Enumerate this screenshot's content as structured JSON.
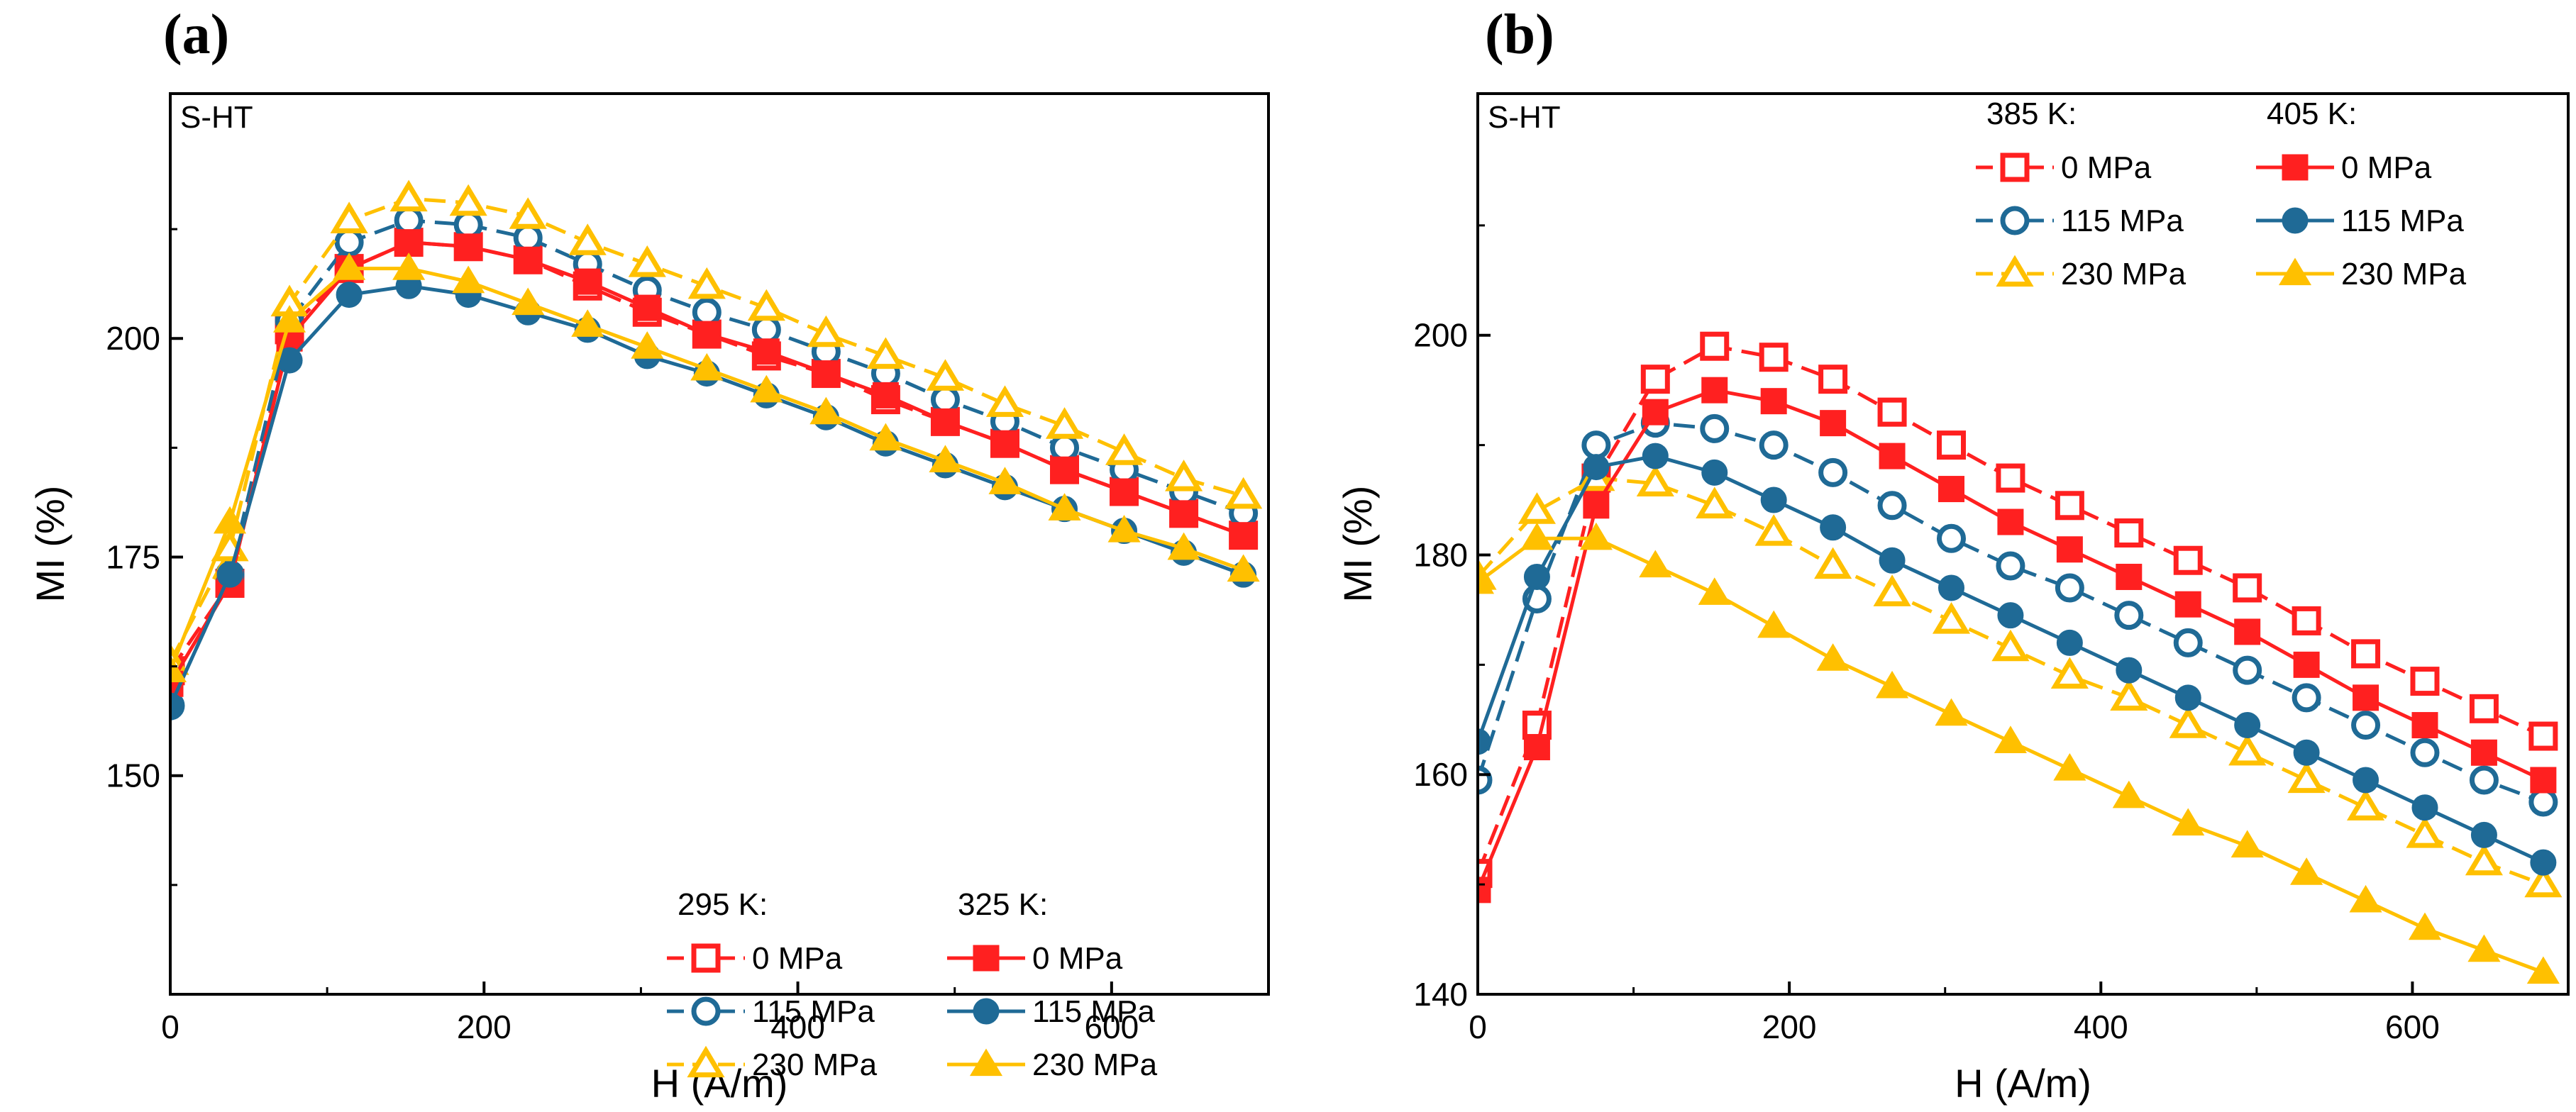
{
  "chart_data": [
    {
      "type": "line",
      "panel_label": "(a)",
      "annotation": "S-HT",
      "xlabel": "H (A/m)",
      "ylabel": "MI (%)",
      "xlim": [
        0,
        700
      ],
      "ylim": [
        125,
        228
      ],
      "xticks": [
        0,
        200,
        400,
        600
      ],
      "yticks": [
        150,
        175,
        200
      ],
      "legend": {
        "position": "bottom-right",
        "group_titles": [
          "295 K:",
          "325 K:"
        ],
        "rows": [
          "0 MPa",
          "115 MPa",
          "230 MPa"
        ]
      },
      "x": [
        0,
        38,
        76,
        114,
        152,
        190,
        228,
        266,
        304,
        342,
        380,
        418,
        456,
        494,
        532,
        570,
        608,
        646,
        684
      ],
      "series": [
        {
          "name": "295 K, 0 MPa",
          "color": "#ff2020",
          "marker": "square",
          "filled": false,
          "values": [
            162,
            172,
            201,
            208,
            211,
            210.5,
            209,
            206,
            203,
            200.5,
            198,
            196,
            193,
            190.5,
            188,
            185,
            182.5,
            180,
            177.5
          ]
        },
        {
          "name": "295 K, 115 MPa",
          "color": "#1f6a96",
          "marker": "circle",
          "filled": false,
          "values": [
            158,
            173,
            202,
            211,
            213.5,
            213,
            211.5,
            208.5,
            205.5,
            203,
            201,
            198.5,
            196,
            193,
            190.5,
            187.5,
            185,
            182.5,
            180
          ]
        },
        {
          "name": "295 K, 230 MPa",
          "color": "#ffc000",
          "marker": "triangle",
          "filled": false,
          "values": [
            163,
            176,
            204,
            213.5,
            216,
            215.5,
            214,
            211,
            208.5,
            206,
            203.5,
            200.5,
            198,
            195.5,
            192.5,
            190,
            187,
            184,
            182
          ]
        },
        {
          "name": "325 K, 0 MPa",
          "color": "#ff2020",
          "marker": "square",
          "filled": true,
          "values": [
            160.5,
            172,
            200,
            208,
            211,
            210.5,
            209,
            206.5,
            203.5,
            200.5,
            198.5,
            196,
            193.5,
            190.5,
            188,
            185,
            182.5,
            180,
            177.5
          ]
        },
        {
          "name": "325 K, 115 MPa",
          "color": "#1f6a96",
          "marker": "circle",
          "filled": true,
          "values": [
            158,
            173,
            197.5,
            205,
            206,
            205,
            203,
            201,
            198,
            196,
            193.5,
            191,
            188,
            185.5,
            183,
            180.5,
            178,
            175.5,
            173
          ]
        },
        {
          "name": "325 K, 230 MPa",
          "color": "#ffc000",
          "marker": "triangle",
          "filled": true,
          "values": [
            162,
            179,
            202,
            208,
            208,
            206.5,
            204,
            201.5,
            199,
            196.5,
            194,
            191.5,
            188.5,
            186,
            183.5,
            180.5,
            178,
            176,
            173.5
          ]
        }
      ]
    },
    {
      "type": "line",
      "panel_label": "(b)",
      "annotation": "S-HT",
      "xlabel": "H (A/m)",
      "ylabel": "MI (%)",
      "xlim": [
        0,
        700
      ],
      "ylim": [
        140,
        222
      ],
      "xticks": [
        0,
        200,
        400,
        600
      ],
      "yticks": [
        140,
        160,
        180,
        200
      ],
      "legend": {
        "position": "top-right",
        "group_titles": [
          "385 K:",
          "405 K:"
        ],
        "rows": [
          "0 MPa",
          "115 MPa",
          "230 MPa"
        ]
      },
      "x": [
        0,
        38,
        76,
        114,
        152,
        190,
        228,
        266,
        304,
        342,
        380,
        418,
        456,
        494,
        532,
        570,
        608,
        646,
        684
      ],
      "series": [
        {
          "name": "385 K, 0 MPa",
          "color": "#ff2020",
          "marker": "square",
          "filled": false,
          "values": [
            151,
            164.5,
            187,
            196,
            199,
            198,
            196,
            193,
            190,
            187,
            184.5,
            182,
            179.5,
            177,
            174,
            171,
            168.5,
            166,
            163.5
          ]
        },
        {
          "name": "385 K, 115 MPa",
          "color": "#1f6a96",
          "marker": "circle",
          "filled": false,
          "values": [
            159.5,
            176,
            190,
            192,
            191.5,
            190,
            187.5,
            184.5,
            181.5,
            179,
            177,
            174.5,
            172,
            169.5,
            167,
            164.5,
            162,
            159.5,
            157.5
          ]
        },
        {
          "name": "385 K, 230 MPa",
          "color": "#ffc000",
          "marker": "triangle",
          "filled": false,
          "values": [
            178,
            184,
            187,
            186.5,
            184.5,
            182,
            179,
            176.5,
            174,
            171.5,
            169,
            167,
            164.5,
            162,
            159.5,
            157,
            154.5,
            152,
            150
          ]
        },
        {
          "name": "405 K, 0 MPa",
          "color": "#ff2020",
          "marker": "square",
          "filled": true,
          "values": [
            149.5,
            162.5,
            184.5,
            193,
            195,
            194,
            192,
            189,
            186,
            183,
            180.5,
            178,
            175.5,
            173,
            170,
            167,
            164.5,
            162,
            159.5
          ]
        },
        {
          "name": "405 K, 115 MPa",
          "color": "#1f6a96",
          "marker": "circle",
          "filled": true,
          "values": [
            163,
            178,
            188,
            189,
            187.5,
            185,
            182.5,
            179.5,
            177,
            174.5,
            172,
            169.5,
            167,
            164.5,
            162,
            159.5,
            157,
            154.5,
            152
          ]
        },
        {
          "name": "405 K, 230 MPa",
          "color": "#ffc000",
          "marker": "triangle",
          "filled": true,
          "values": [
            177.5,
            181.5,
            181.5,
            179,
            176.5,
            173.5,
            170.5,
            168,
            165.5,
            163,
            160.5,
            158,
            155.5,
            153.5,
            151,
            148.5,
            146,
            144,
            142
          ]
        }
      ]
    }
  ]
}
